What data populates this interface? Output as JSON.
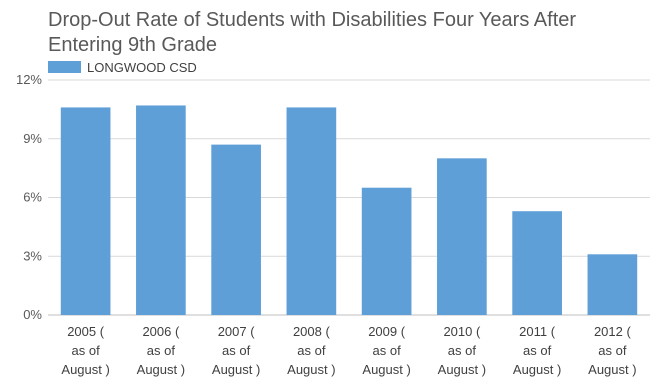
{
  "chart_data": {
    "type": "bar",
    "title": "Drop-Out Rate of Students with Disabilities Four Years After Entering 9th Grade",
    "xlabel": "",
    "ylabel": "",
    "ylim": [
      0,
      12
    ],
    "yticks": [
      0,
      3,
      6,
      9,
      12
    ],
    "ytick_labels": [
      "0%",
      "3%",
      "6%",
      "9%",
      "12%"
    ],
    "categories": [
      [
        "2005 (",
        "as of",
        "August )"
      ],
      [
        "2006 (",
        "as of",
        "August )"
      ],
      [
        "2007 (",
        "as of",
        "August )"
      ],
      [
        "2008 (",
        "as of",
        "August )"
      ],
      [
        "2009 (",
        "as of",
        "August )"
      ],
      [
        "2010 (",
        "as of",
        "August )"
      ],
      [
        "2011 (",
        "as of",
        "August )"
      ],
      [
        "2012 (",
        "as of",
        "August )"
      ]
    ],
    "series": [
      {
        "name": "LONGWOOD CSD",
        "color": "#5f9fd8",
        "values": [
          10.6,
          10.7,
          8.7,
          10.6,
          6.5,
          8.0,
          5.3,
          3.1
        ]
      }
    ],
    "grid": true,
    "legend_position": "top-left"
  }
}
